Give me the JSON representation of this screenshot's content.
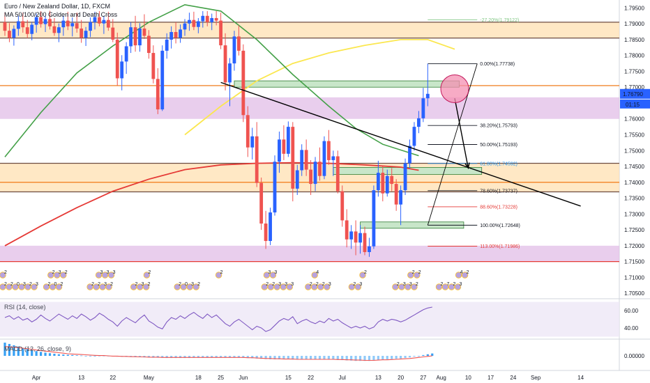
{
  "header": {
    "title": "Euro / New Zealand Dollar, 1D, FXCM",
    "subtitle": "MA 50/100/200 Golden and Death Cross",
    "rsi_label": "RSI (14, close)",
    "macd_label": "MACD (12, 26, close, 9)"
  },
  "colors": {
    "up": "#2962ff",
    "down": "#ef5350",
    "ma50": "#43a047",
    "ma100": "#fbe74f",
    "ma200": "#e53935",
    "purple_zone": "#e1bee7",
    "orange_zone": "#ffe0b2",
    "green_box": "#c8e6c9",
    "rsi_line": "#7e57c2",
    "macd_hist": "#2196f3",
    "macd_signal": "#ef5350"
  },
  "chart_data": {
    "type": "candlestick",
    "symbol": "EURNZD",
    "timeframe": "1D",
    "ylim": [
      1.7035,
      1.7975
    ],
    "y_ticks": [
      1.705,
      1.71,
      1.715,
      1.72,
      1.725,
      1.73,
      1.735,
      1.74,
      1.745,
      1.75,
      1.755,
      1.76,
      1.765,
      1.77,
      1.775,
      1.78,
      1.785,
      1.79,
      1.795
    ],
    "y_tick_labels": [
      "1.70500",
      "1.71000",
      "1.71500",
      "1.72000",
      "1.72500",
      "1.73000",
      "1.73500",
      "1.74000",
      "1.74500",
      "1.75000",
      "1.75500",
      "1.76000",
      "",
      "1.77000",
      "1.77500",
      "1.78000",
      "1.78500",
      "1.79000",
      "1.79500"
    ],
    "x_labels": [
      {
        "label": "Apr",
        "bar": 7
      },
      {
        "label": "13",
        "bar": 17
      },
      {
        "label": "22",
        "bar": 24
      },
      {
        "label": "May",
        "bar": 32
      },
      {
        "label": "18",
        "bar": 43
      },
      {
        "label": "25",
        "bar": 48
      },
      {
        "label": "Jun",
        "bar": 53
      },
      {
        "label": "15",
        "bar": 63
      },
      {
        "label": "22",
        "bar": 68
      },
      {
        "label": "Jul",
        "bar": 75
      },
      {
        "label": "13",
        "bar": 83
      },
      {
        "label": "20",
        "bar": 88
      },
      {
        "label": "27",
        "bar": 93
      },
      {
        "label": "Aug",
        "bar": 97
      },
      {
        "label": "10",
        "bar": 103
      },
      {
        "label": "17",
        "bar": 108
      },
      {
        "label": "24",
        "bar": 113
      },
      {
        "label": "Sep",
        "bar": 118
      },
      {
        "label": "14",
        "bar": 128
      }
    ],
    "candles": [
      [
        1.7905,
        1.7935,
        1.7862,
        1.7878
      ],
      [
        1.7878,
        1.7902,
        1.7842,
        1.7856
      ],
      [
        1.7856,
        1.7895,
        1.7831,
        1.7884
      ],
      [
        1.7884,
        1.7925,
        1.7862,
        1.7908
      ],
      [
        1.7908,
        1.7935,
        1.7872,
        1.7889
      ],
      [
        1.7889,
        1.7912,
        1.7855,
        1.7868
      ],
      [
        1.7868,
        1.7905,
        1.7848,
        1.7897
      ],
      [
        1.7897,
        1.7932,
        1.7872,
        1.7921
      ],
      [
        1.7921,
        1.794,
        1.7888,
        1.7899
      ],
      [
        1.7899,
        1.7925,
        1.7874,
        1.7915
      ],
      [
        1.7915,
        1.7941,
        1.7882,
        1.7892
      ],
      [
        1.7892,
        1.7918,
        1.7862,
        1.7871
      ],
      [
        1.7871,
        1.7901,
        1.7842,
        1.7889
      ],
      [
        1.7889,
        1.7925,
        1.7862,
        1.791
      ],
      [
        1.791,
        1.7938,
        1.788,
        1.7892
      ],
      [
        1.7892,
        1.792,
        1.786,
        1.7902
      ],
      [
        1.7902,
        1.7935,
        1.7872,
        1.7885
      ],
      [
        1.7885,
        1.7912,
        1.784,
        1.7856
      ],
      [
        1.7856,
        1.789,
        1.783,
        1.7878
      ],
      [
        1.7878,
        1.792,
        1.7858,
        1.7905
      ],
      [
        1.7905,
        1.7938,
        1.7882,
        1.7921
      ],
      [
        1.7921,
        1.794,
        1.7892,
        1.7901
      ],
      [
        1.7901,
        1.7925,
        1.7868,
        1.7912
      ],
      [
        1.7912,
        1.7938,
        1.7878,
        1.7888
      ],
      [
        1.7888,
        1.7915,
        1.7842,
        1.785
      ],
      [
        1.785,
        1.7872,
        1.7705,
        1.7728
      ],
      [
        1.7728,
        1.7801,
        1.769,
        1.7781
      ],
      [
        1.7781,
        1.7842,
        1.7742,
        1.7829
      ],
      [
        1.7829,
        1.7905,
        1.7808,
        1.7889
      ],
      [
        1.7889,
        1.7925,
        1.7812,
        1.7832
      ],
      [
        1.7832,
        1.7902,
        1.7812,
        1.7885
      ],
      [
        1.7885,
        1.793,
        1.7852,
        1.7862
      ],
      [
        1.7862,
        1.788,
        1.779,
        1.7808
      ],
      [
        1.7808,
        1.7832,
        1.7712,
        1.7726
      ],
      [
        1.7726,
        1.776,
        1.7615,
        1.763
      ],
      [
        1.763,
        1.7832,
        1.7625,
        1.7815
      ],
      [
        1.7815,
        1.787,
        1.779,
        1.785
      ],
      [
        1.785,
        1.7892,
        1.7822,
        1.7874
      ],
      [
        1.7874,
        1.7905,
        1.7838,
        1.7856
      ],
      [
        1.7856,
        1.7898,
        1.784,
        1.7882
      ],
      [
        1.7882,
        1.7915,
        1.7862,
        1.7901
      ],
      [
        1.7901,
        1.7935,
        1.7878,
        1.7912
      ],
      [
        1.7912,
        1.7938,
        1.788,
        1.789
      ],
      [
        1.789,
        1.7918,
        1.787,
        1.7908
      ],
      [
        1.7908,
        1.794,
        1.7888,
        1.7925
      ],
      [
        1.7925,
        1.794,
        1.7892,
        1.7905
      ],
      [
        1.7905,
        1.7932,
        1.788,
        1.7918
      ],
      [
        1.7918,
        1.794,
        1.7895,
        1.791
      ],
      [
        1.791,
        1.7935,
        1.782,
        1.7832
      ],
      [
        1.7832,
        1.787,
        1.769,
        1.7715
      ],
      [
        1.7715,
        1.7792,
        1.764,
        1.7775
      ],
      [
        1.7775,
        1.7878,
        1.7752,
        1.786
      ],
      [
        1.786,
        1.7895,
        1.78,
        1.7815
      ],
      [
        1.7815,
        1.7835,
        1.759,
        1.7612
      ],
      [
        1.7612,
        1.764,
        1.748,
        1.751
      ],
      [
        1.751,
        1.7572,
        1.7472,
        1.7545
      ],
      [
        1.7545,
        1.759,
        1.7385,
        1.7398
      ],
      [
        1.7398,
        1.7415,
        1.725,
        1.727
      ],
      [
        1.727,
        1.731,
        1.719,
        1.7215
      ],
      [
        1.7215,
        1.732,
        1.7202,
        1.7305
      ],
      [
        1.7305,
        1.7485,
        1.7295,
        1.7465
      ],
      [
        1.7465,
        1.756,
        1.743,
        1.7535
      ],
      [
        1.7535,
        1.758,
        1.747,
        1.749
      ],
      [
        1.749,
        1.7592,
        1.748,
        1.7575
      ],
      [
        1.7575,
        1.759,
        1.734,
        1.738
      ],
      [
        1.738,
        1.7455,
        1.736,
        1.7438
      ],
      [
        1.7438,
        1.752,
        1.742,
        1.7502
      ],
      [
        1.7502,
        1.7535,
        1.742,
        1.744
      ],
      [
        1.744,
        1.747,
        1.736,
        1.7395
      ],
      [
        1.7395,
        1.748,
        1.7372,
        1.7465
      ],
      [
        1.7465,
        1.751,
        1.7405,
        1.742
      ],
      [
        1.742,
        1.7545,
        1.741,
        1.753
      ],
      [
        1.753,
        1.7565,
        1.7455,
        1.747
      ],
      [
        1.747,
        1.75,
        1.742,
        1.7482
      ],
      [
        1.7482,
        1.75,
        1.7365,
        1.7372
      ],
      [
        1.7372,
        1.739,
        1.726,
        1.728
      ],
      [
        1.728,
        1.7315,
        1.7195,
        1.722
      ],
      [
        1.722,
        1.7265,
        1.719,
        1.7245
      ],
      [
        1.7245,
        1.728,
        1.717,
        1.721
      ],
      [
        1.721,
        1.7265,
        1.7175,
        1.724
      ],
      [
        1.724,
        1.726,
        1.717,
        1.718
      ],
      [
        1.718,
        1.7225,
        1.7165,
        1.7198
      ],
      [
        1.7198,
        1.739,
        1.719,
        1.7375
      ],
      [
        1.7375,
        1.7468,
        1.7355,
        1.743
      ],
      [
        1.743,
        1.745,
        1.734,
        1.7365
      ],
      [
        1.7365,
        1.744,
        1.7355,
        1.742
      ],
      [
        1.742,
        1.7445,
        1.7372,
        1.7395
      ],
      [
        1.7395,
        1.741,
        1.731,
        1.733
      ],
      [
        1.733,
        1.739,
        1.7265,
        1.7375
      ],
      [
        1.7375,
        1.7475,
        1.736,
        1.746
      ],
      [
        1.746,
        1.7535,
        1.7445,
        1.7515
      ],
      [
        1.7515,
        1.759,
        1.75,
        1.7575
      ],
      [
        1.7575,
        1.7625,
        1.7555,
        1.7602
      ],
      [
        1.7602,
        1.7698,
        1.759,
        1.7665
      ],
      [
        1.7665,
        1.7774,
        1.764,
        1.7679
      ]
    ],
    "last_price": "1.76790",
    "countdown": "01:15",
    "ma50": [
      [
        0,
        1.748
      ],
      [
        8,
        1.762
      ],
      [
        16,
        1.7745
      ],
      [
        24,
        1.783
      ],
      [
        32,
        1.7905
      ],
      [
        40,
        1.796
      ],
      [
        48,
        1.794
      ],
      [
        56,
        1.785
      ],
      [
        64,
        1.774
      ],
      [
        72,
        1.764
      ],
      [
        78,
        1.757
      ],
      [
        84,
        1.752
      ],
      [
        92,
        1.7484
      ]
    ],
    "ma100": [
      [
        40,
        1.755
      ],
      [
        48,
        1.764
      ],
      [
        56,
        1.772
      ],
      [
        64,
        1.7775
      ],
      [
        72,
        1.7808
      ],
      [
        80,
        1.7832
      ],
      [
        88,
        1.785
      ],
      [
        94,
        1.785
      ],
      [
        100,
        1.782
      ]
    ],
    "ma200": [
      [
        0,
        1.72
      ],
      [
        8,
        1.7262
      ],
      [
        16,
        1.732
      ],
      [
        24,
        1.7372
      ],
      [
        32,
        1.741
      ],
      [
        40,
        1.744
      ],
      [
        48,
        1.7455
      ],
      [
        56,
        1.746
      ],
      [
        64,
        1.7462
      ],
      [
        72,
        1.746
      ],
      [
        80,
        1.7455
      ],
      [
        88,
        1.7448
      ],
      [
        92,
        1.7438
      ]
    ],
    "zones": [
      {
        "type": "purple",
        "y0": 1.76,
        "y1": 1.7668
      },
      {
        "type": "purple",
        "y0": 1.715,
        "y1": 1.72
      },
      {
        "type": "orange",
        "y0": 1.7855,
        "y1": 1.7905
      },
      {
        "type": "orange",
        "y0": 1.737,
        "y1": 1.746
      }
    ],
    "hlines": [
      {
        "y": 1.7855,
        "color": "#6d4c41"
      },
      {
        "y": 1.7905,
        "color": "#6d4c41"
      },
      {
        "y": 1.7705,
        "color": "#ef6c00"
      },
      {
        "y": 1.74,
        "color": "#ef6c00"
      },
      {
        "y": 1.746,
        "color": "#6d4c41"
      },
      {
        "y": 1.737,
        "color": "#6d4c41"
      },
      {
        "y": 1.715,
        "color": "#e53935"
      }
    ],
    "green_boxes": [
      {
        "b0": 51,
        "b1": 101,
        "y0": 1.77,
        "y1": 1.772
      },
      {
        "b0": 73,
        "b1": 106,
        "y0": 1.7425,
        "y1": 1.7447
      },
      {
        "b0": 79,
        "b1": 102,
        "y0": 1.7255,
        "y1": 1.7275
      }
    ],
    "fib_levels": [
      {
        "label": "-27.20%(1.79122)",
        "y": 1.79122,
        "color": "#81c784"
      },
      {
        "label": "0.00%(1.77738)",
        "y": 1.77738,
        "color": "#131722"
      },
      {
        "label": "38.20%(1.75793)",
        "y": 1.75793,
        "color": "#131722"
      },
      {
        "label": "50.00%(1.75193)",
        "y": 1.75193,
        "color": "#131722"
      },
      {
        "label": "61.80%(1.74592)",
        "y": 1.74592,
        "color": "#2196f3"
      },
      {
        "label": "78.60%(1.73737)",
        "y": 1.73737,
        "color": "#131722"
      },
      {
        "label": "88.60%(1.73228)",
        "y": 1.73228,
        "color": "#e53935"
      },
      {
        "label": "100.00%(1.72648)",
        "y": 1.72648,
        "color": "#131722"
      },
      {
        "label": "113.00%(1.71986)",
        "y": 1.71986,
        "color": "#e53935"
      }
    ],
    "fib_range": {
      "b0": 94,
      "b1": 105
    },
    "trendline": {
      "b0": 48,
      "y0": 1.7715,
      "b1": 128,
      "y1": 1.7325
    },
    "fib_anchor_line": {
      "b0": 94,
      "y0": 1.7265,
      "b1": 105,
      "y1": 1.7774
    },
    "arrow": {
      "b0": 100,
      "y0": 1.7665,
      "b1": 103,
      "y1": 1.7445
    },
    "circle": {
      "b": 100,
      "y": 1.7695
    },
    "rsi": {
      "ylim": [
        28,
        72
      ],
      "ticks": [
        40,
        60
      ],
      "tick_labels": [
        "40.00",
        "60.00"
      ],
      "band": [
        30,
        70
      ],
      "values": [
        52,
        54,
        50,
        53,
        49,
        51,
        47,
        50,
        55,
        51,
        48,
        52,
        56,
        53,
        50,
        54,
        51,
        56,
        53,
        49,
        52,
        57,
        54,
        50,
        47,
        42,
        48,
        52,
        49,
        46,
        51,
        55,
        48,
        45,
        41,
        39,
        47,
        52,
        50,
        54,
        51,
        55,
        58,
        54,
        51,
        56,
        52,
        55,
        50,
        45,
        42,
        47,
        50,
        46,
        42,
        38,
        42,
        40,
        36,
        38,
        43,
        48,
        51,
        49,
        53,
        45,
        48,
        50,
        47,
        45,
        48,
        46,
        51,
        48,
        50,
        46,
        43,
        40,
        42,
        40,
        42,
        39,
        41,
        47,
        50,
        48,
        50,
        49,
        47,
        49,
        52,
        55,
        58,
        61,
        63,
        64
      ]
    },
    "macd": {
      "ylim": [
        -0.005,
        0.0058
      ],
      "ticks": [
        0.0
      ],
      "tick_labels": [
        "0.00000"
      ],
      "hist": [
        0.005,
        0.0045,
        0.004,
        0.0035,
        0.003,
        0.0026,
        0.0022,
        0.0018,
        0.0015,
        0.0012,
        0.001,
        0.0008,
        0.0006,
        0.0005,
        0.0004,
        0.0003,
        0.0002,
        0.0001,
        0.0,
        0.0,
        0.0,
        -0.0001,
        -0.0001,
        -0.0002,
        -0.0002,
        -0.0003,
        -0.0003,
        -0.0004,
        -0.0004,
        -0.0005,
        -0.0005,
        -0.0006,
        -0.0006,
        -0.0007,
        -0.0007,
        -0.0007,
        -0.0008,
        -0.0008,
        -0.0008,
        -0.0008,
        -0.0008,
        -0.0008,
        -0.0007,
        -0.0007,
        -0.0007,
        -0.0007,
        -0.0007,
        -0.0006,
        -0.0006,
        -0.0006,
        -0.0006,
        -0.0006,
        -0.0006,
        -0.0007,
        -0.0008,
        -0.0009,
        -0.001,
        -0.0011,
        -0.0012,
        -0.0013,
        -0.0013,
        -0.0013,
        -0.0013,
        -0.0013,
        -0.0014,
        -0.0014,
        -0.0014,
        -0.0014,
        -0.0014,
        -0.0014,
        -0.0014,
        -0.0014,
        -0.0014,
        -0.0014,
        -0.0015,
        -0.0016,
        -0.0017,
        -0.0018,
        -0.0019,
        -0.0019,
        -0.0019,
        -0.0019,
        -0.0018,
        -0.0016,
        -0.0014,
        -0.0013,
        -0.0012,
        -0.0011,
        -0.001,
        -0.0008,
        -0.0006,
        -0.0003,
        0.0,
        0.0003,
        0.0006,
        0.0009
      ],
      "signal": [
        0.0035,
        0.0034,
        0.0033,
        0.0031,
        0.0029,
        0.0027,
        0.0025,
        0.0022,
        0.002,
        0.0018,
        0.0016,
        0.0014,
        0.0012,
        0.001,
        0.0008,
        0.0007,
        0.0006,
        0.0005,
        0.0004,
        0.0003,
        0.0002,
        0.0001,
        0.0001,
        0.0,
        -0.0001,
        -0.0001,
        -0.0002,
        -0.0002,
        -0.0003,
        -0.0003,
        -0.0004,
        -0.0004,
        -0.0005,
        -0.0005,
        -0.0005,
        -0.0006,
        -0.0006,
        -0.0006,
        -0.0006,
        -0.0006,
        -0.0006,
        -0.0006,
        -0.0006,
        -0.0006,
        -0.0006,
        -0.0006,
        -0.0006,
        -0.0006,
        -0.0006,
        -0.0006,
        -0.0006,
        -0.0006,
        -0.0006,
        -0.0006,
        -0.0007,
        -0.0007,
        -0.0008,
        -0.0009,
        -0.001,
        -0.001,
        -0.0011,
        -0.0011,
        -0.0012,
        -0.0012,
        -0.0012,
        -0.0013,
        -0.0013,
        -0.0013,
        -0.0013,
        -0.0013,
        -0.0013,
        -0.0013,
        -0.0013,
        -0.0013,
        -0.0014,
        -0.0014,
        -0.0015,
        -0.0015,
        -0.0016,
        -0.0016,
        -0.0017,
        -0.0017,
        -0.0017,
        -0.0016,
        -0.0015,
        -0.0015,
        -0.0014,
        -0.0013,
        -0.0012,
        -0.0011,
        -0.001,
        -0.0008,
        -0.0006,
        -0.0004,
        -0.0002,
        0.0
      ]
    },
    "markers": {
      "top_labels": [
        "2",
        "",
        "2 3 2",
        "",
        "3 3 3",
        "",
        "2",
        "",
        "",
        "2",
        "",
        "3 3",
        "",
        "4",
        "",
        "2",
        "",
        "2 2",
        "",
        "4 2"
      ],
      "bottom_labels": [
        "2 2 0 3 2 3",
        "2 0 2",
        "2 2 3 2",
        "2 3 2",
        "2 0 3 2",
        "",
        "2 2 3 3 3",
        "2 2 2 3",
        "2 3",
        "2 3 3 2",
        "2 7 2 3"
      ]
    }
  }
}
